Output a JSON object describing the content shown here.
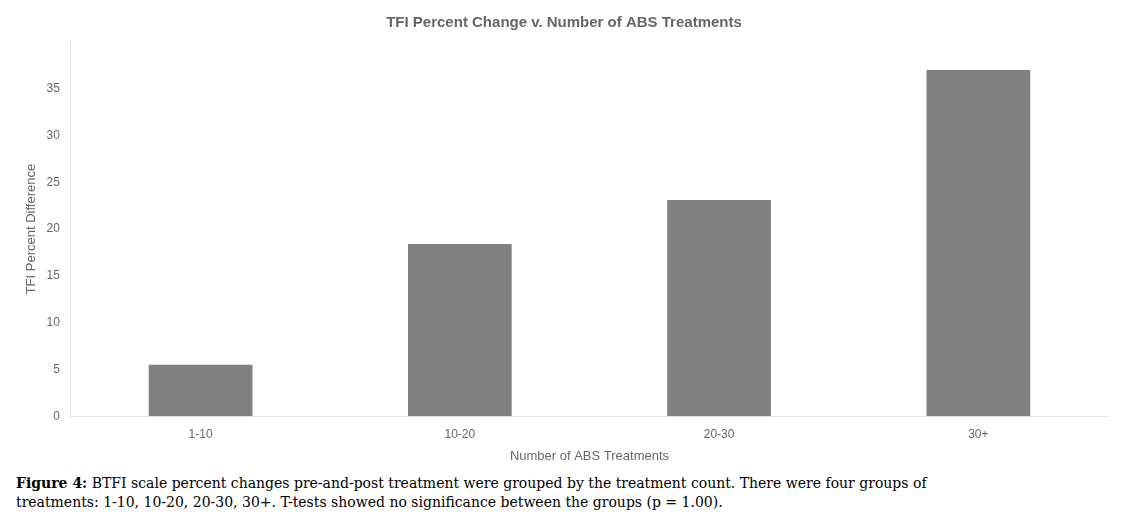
{
  "chart_data": {
    "type": "bar",
    "title": "TFI Percent Change v. Number of ABS Treatments",
    "xlabel": "Number of ABS Treatments",
    "ylabel": "TFI Percent Difference",
    "categories": [
      "1-10",
      "10-20",
      "20-30",
      "30+"
    ],
    "values": [
      5.5,
      18.4,
      23.1,
      37.0
    ],
    "color": "#808080",
    "ylim": [
      0,
      40
    ],
    "yticks": [
      0,
      5,
      10,
      15,
      20,
      25,
      30,
      35
    ],
    "grid": false,
    "caption": "Figure 4: BTFI scale percent changes pre-and-post treatment were grouped by the treatment count. There were four groups of\ntreatments: 1-10, 10-20, 20-30, 30+. T-tests showed no significance between the groups (p = 1.00)."
  }
}
